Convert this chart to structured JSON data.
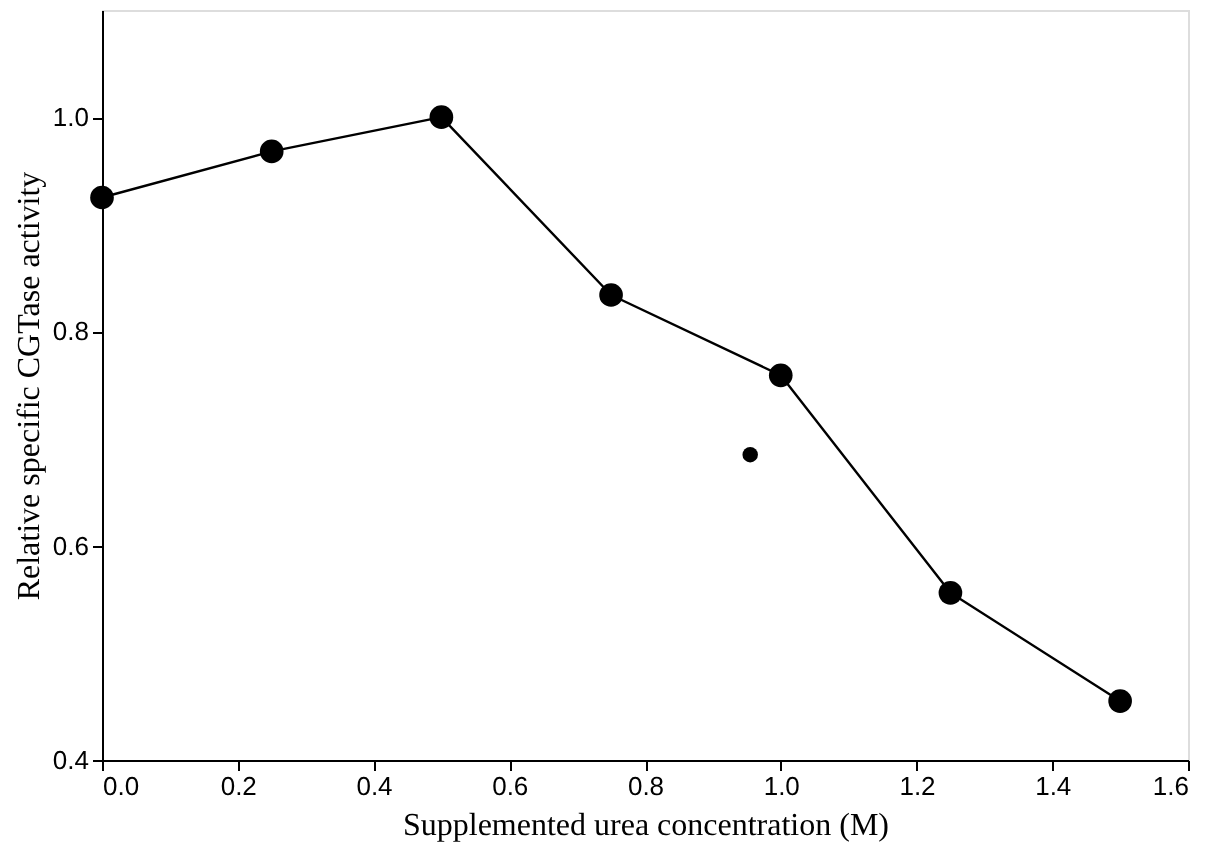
{
  "chart_data": {
    "type": "line",
    "xlabel": "Supplemented urea concentration (M)",
    "ylabel": "Relative specific CGTase activity",
    "xlim": [
      0,
      1.6
    ],
    "ylim": [
      0.4,
      1.1
    ],
    "xticks": [
      {
        "value": 0,
        "label": "0.0"
      },
      0.2,
      0.4,
      0.6,
      0.8,
      {
        "value": 1,
        "label": "1.0"
      },
      1.2,
      1.4,
      1.6
    ],
    "yticks": [
      0.4,
      0.6,
      0.8,
      {
        "value": 1,
        "label": "1.0"
      }
    ],
    "grid": false,
    "marker": "circle",
    "line_style": "solid",
    "series": [
      {
        "color": "#000000",
        "x": [
          0,
          0.25,
          0.5,
          0.75,
          1.0,
          1.25,
          1.5
        ],
        "values": [
          0.925,
          0.968,
          1.0,
          0.834,
          0.759,
          0.556,
          0.455
        ]
      },
      {
        "type": "scatter",
        "color": "#000000",
        "x": [
          0.955
        ],
        "values": [
          0.685
        ]
      }
    ]
  }
}
